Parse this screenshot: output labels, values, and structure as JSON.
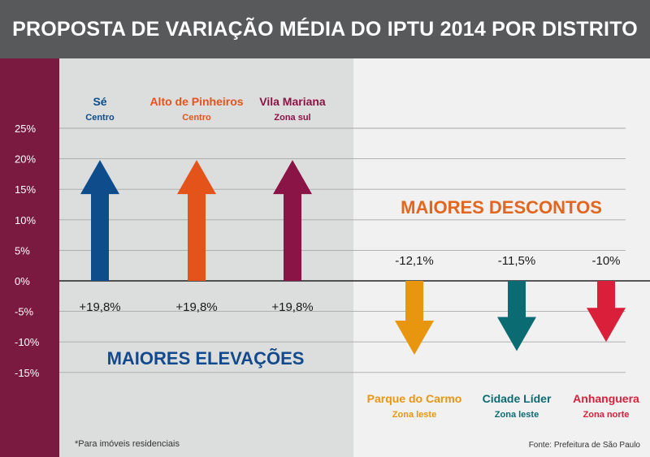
{
  "title": "PROPOSTA DE VARIAÇÃO MÉDIA DO IPTU 2014 POR DISTRITO",
  "footnote": "*Para imóveis residenciais",
  "source": "Fonte: Prefeitura de São Paulo",
  "colors": {
    "title_bg": "#58595b",
    "sidebar": "#7a1a40",
    "left_panel": "#dcdddd",
    "right_panel": "#f1f1f1",
    "heading_increase": "#134a8e",
    "heading_decrease": "#e2661f"
  },
  "chart_data": {
    "type": "bar",
    "ylim": [
      -15,
      25
    ],
    "yticks": [
      25,
      20,
      15,
      10,
      5,
      0,
      -5,
      -10,
      -15
    ],
    "tick_labels": [
      "25%",
      "20%",
      "15%",
      "10%",
      "5%",
      "0%",
      "-5%",
      "-10%",
      "-15%"
    ],
    "grid": true,
    "groups": [
      {
        "heading": "MAIORES ELEVAÇÕES",
        "heading_color": "#134a8e"
      },
      {
        "heading": "MAIORES DESCONTOS",
        "heading_color": "#e2661f"
      }
    ],
    "series": [
      {
        "district": "Sé",
        "zone": "Centro",
        "value": 19.8,
        "label": "+19,8%",
        "color": "#0f4c8c",
        "group": 0
      },
      {
        "district": "Alto de Pinheiros",
        "zone": "Centro",
        "value": 19.8,
        "label": "+19,8%",
        "color": "#e4541a",
        "group": 0
      },
      {
        "district": "Vila Mariana",
        "zone": "Zona sul",
        "value": 19.8,
        "label": "+19,8%",
        "color": "#8b1446",
        "group": 0
      },
      {
        "district": "Parque do Carmo",
        "zone": "Zona leste",
        "value": -12.1,
        "label": "-12,1%",
        "color": "#e8960f",
        "group": 1
      },
      {
        "district": "Cidade Líder",
        "zone": "Zona leste",
        "value": -11.5,
        "label": "-11,5%",
        "color": "#0a6b72",
        "group": 1
      },
      {
        "district": "Anhanguera",
        "zone": "Zona norte",
        "value": -10,
        "label": "-10%",
        "color": "#d91f3a",
        "group": 1
      }
    ]
  }
}
